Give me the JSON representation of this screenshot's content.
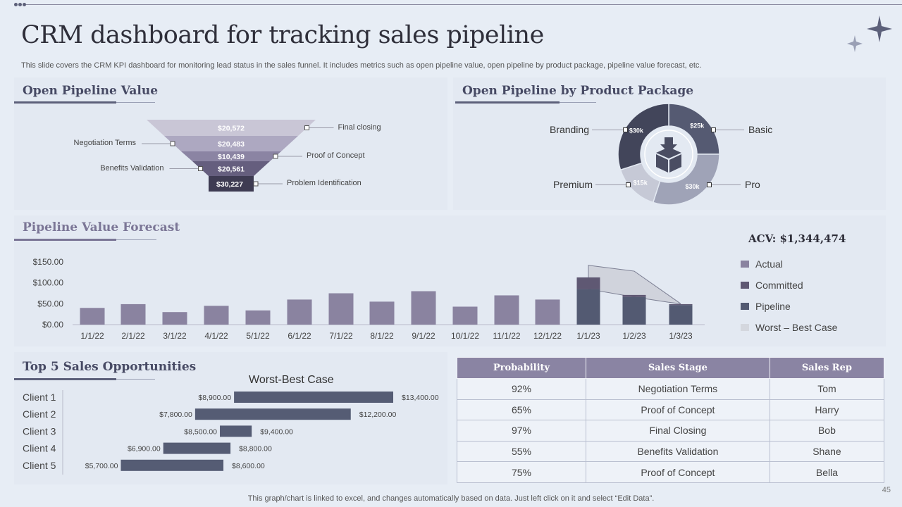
{
  "header": {
    "title": "CRM dashboard for tracking sales pipeline",
    "subtitle": "This slide covers the CRM KPI dashboard for monitoring lead status in the sales funnel. It includes metrics such as open pipeline value, open pipeline by product package, pipeline value forecast, etc."
  },
  "open_pipeline": {
    "title": "Open Pipeline Value",
    "stages": [
      {
        "value": "$20,572",
        "label": "Final closing",
        "side": "right"
      },
      {
        "value": "$20,483",
        "label": "Negotiation Terms",
        "side": "left"
      },
      {
        "value": "$10,439",
        "label": "Proof of Concept",
        "side": "right"
      },
      {
        "value": "$20,561",
        "label": "Benefits Validation",
        "side": "left"
      },
      {
        "value": "$30,227",
        "label": "Problem Identification",
        "side": "right"
      }
    ]
  },
  "product_package": {
    "title": "Open Pipeline by Product Package",
    "slices": [
      {
        "name": "Basic",
        "value": 25,
        "label": "$25k",
        "color": "#555a72"
      },
      {
        "name": "Pro",
        "value": 30,
        "label": "$30k",
        "color": "#9fa3b7"
      },
      {
        "name": "Premium",
        "value": 15,
        "label": "$15k",
        "color": "#c6c9d6"
      },
      {
        "name": "Branding",
        "value": 30,
        "label": "$30k",
        "color": "#42455a"
      }
    ],
    "center_icon": "box-download-icon"
  },
  "forecast": {
    "title": "Pipeline Value Forecast",
    "acv_label": "ACV: $1,344,474",
    "legend": [
      {
        "name": "Actual",
        "color": "#8a83a0"
      },
      {
        "name": "Committed",
        "color": "#5f5873"
      },
      {
        "name": "Pipeline",
        "color": "#535a72"
      },
      {
        "name": "Worst – Best Case",
        "color": "#d4d7de"
      }
    ]
  },
  "chart_data": [
    {
      "type": "bar",
      "title": "Pipeline Value Forecast",
      "categories": [
        "1/1/22",
        "2/1/22",
        "3/1/22",
        "4/1/22",
        "5/1/22",
        "6/1/22",
        "7/1/22",
        "8/1/22",
        "9/1/22",
        "10/1/22",
        "11/1/22",
        "12/1/22",
        "1/1/23",
        "1/2/23",
        "1/3/23"
      ],
      "series": [
        {
          "name": "Actual",
          "values": [
            40,
            49,
            30,
            45,
            34,
            60,
            75,
            55,
            80,
            43,
            70,
            60,
            null,
            null,
            null
          ]
        },
        {
          "name": "Committed",
          "values": [
            null,
            null,
            null,
            null,
            null,
            null,
            null,
            null,
            null,
            null,
            null,
            null,
            28,
            5,
            2
          ]
        },
        {
          "name": "Pipeline",
          "values": [
            null,
            null,
            null,
            null,
            null,
            null,
            null,
            null,
            null,
            null,
            null,
            null,
            85,
            66,
            47
          ]
        },
        {
          "name": "Worst – Best Case",
          "values": [
            null,
            null,
            null,
            null,
            null,
            null,
            null,
            null,
            null,
            null,
            null,
            null,
            142,
            128,
            50
          ]
        }
      ],
      "yticks": [
        "$0.00",
        "$50.00",
        "$100.00",
        "$150.00"
      ],
      "ylim": [
        0,
        150
      ]
    },
    {
      "type": "bar",
      "orientation": "horizontal",
      "title": "Worst-Best Case",
      "categories": [
        "Client 1",
        "Client 2",
        "Client 3",
        "Client 4",
        "Client 5"
      ],
      "series": [
        {
          "name": "Worst",
          "values": [
            8900,
            7800,
            8500,
            6900,
            5700
          ]
        },
        {
          "name": "Best",
          "values": [
            13400,
            12200,
            9400,
            8800,
            8600
          ]
        }
      ],
      "worst_labels": [
        "$8,900.00",
        "$7,800.00",
        "$8,500.00",
        "$6,900.00",
        "$5,700.00"
      ],
      "best_labels": [
        "$13,400.00",
        "$12,200.00",
        "$9,400.00",
        "$8,800.00",
        "$8,600.00"
      ]
    }
  ],
  "opportunities": {
    "title": "Top 5 Sales Opportunities",
    "chart_title": "Worst-Best Case",
    "table_headers": [
      "Probability",
      "Sales Stage",
      "Sales Rep"
    ],
    "rows": [
      [
        "92%",
        "Negotiation Terms",
        "Tom"
      ],
      [
        "65%",
        "Proof of Concept",
        "Harry"
      ],
      [
        "97%",
        "Final Closing",
        "Bob"
      ],
      [
        "55%",
        "Benefits Validation",
        "Shane"
      ],
      [
        "75%",
        "Proof of Concept",
        "Bella"
      ]
    ]
  },
  "footer": {
    "note": "This graph/chart is linked to excel,  and changes automatically based on data. Just left click on it and select “Edit Data”.",
    "page_number": "45"
  }
}
